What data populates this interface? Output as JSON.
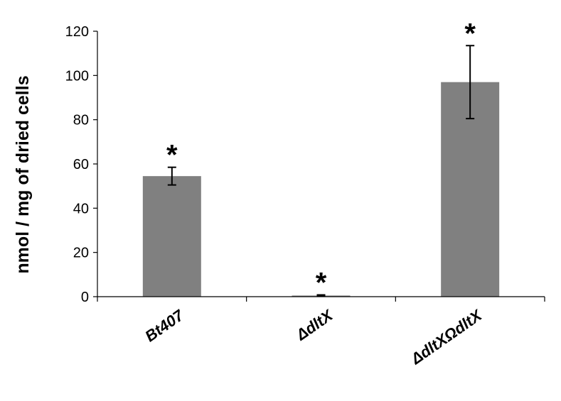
{
  "chart_data": {
    "type": "bar",
    "title": "",
    "xlabel": "",
    "ylabel": "nmol / mg of dried cells",
    "ylim": [
      0,
      120
    ],
    "yticks": [
      0,
      20,
      40,
      60,
      80,
      100,
      120
    ],
    "categories": [
      "Bt407",
      "ΔdltX",
      "ΔdltXΩdltX"
    ],
    "values": [
      54.5,
      0.5,
      97
    ],
    "errors": [
      4,
      0.3,
      16.5
    ],
    "annotations": [
      "*",
      "*",
      "*"
    ],
    "bar_color": "#808080",
    "grid": false,
    "legend": "none"
  }
}
